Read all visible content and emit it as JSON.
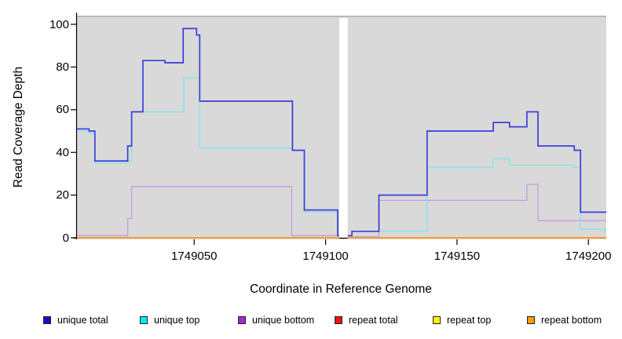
{
  "chart_data": {
    "type": "line",
    "step_plot": true,
    "title": "",
    "xlabel": "Coordinate in Reference Genome",
    "ylabel": "Read Coverage Depth",
    "xlim": [
      1749005.4,
      1749206.8
    ],
    "ylim": [
      0,
      100
    ],
    "x_ticks": [
      1749050,
      1749100,
      1749150,
      1749200
    ],
    "x_tick_labels": [
      "1749050",
      "1749100",
      "1749150",
      "1749200"
    ],
    "y_ticks": [
      0,
      20,
      40,
      60,
      80,
      100
    ],
    "y_tick_labels": [
      "0",
      "20",
      "40",
      "60",
      "80",
      "100"
    ],
    "grid": false,
    "panel_bg": "#d9d9d9",
    "gap_x": [
      1749105.2,
      1749108.4
    ],
    "legend_position": "bottom",
    "series": [
      {
        "name": "repeat total",
        "color": "#dd1111",
        "width": 1.4,
        "regions": [
          [
            [
              1749005.4,
              0
            ],
            [
              1749105.2,
              0
            ]
          ],
          [
            [
              1749108.4,
              0
            ],
            [
              1749206.8,
              0
            ]
          ]
        ]
      },
      {
        "name": "repeat top",
        "color": "#ffff00",
        "width": 1.4,
        "regions": [
          [
            [
              1749005.4,
              0
            ],
            [
              1749105.2,
              0
            ]
          ],
          [
            [
              1749108.4,
              0
            ],
            [
              1749206.8,
              0
            ]
          ]
        ]
      },
      {
        "name": "repeat bottom",
        "color": "#ff9d2e",
        "width": 1.8,
        "regions": [
          [
            [
              1749005.4,
              0
            ],
            [
              1749105.2,
              0
            ]
          ],
          [
            [
              1749108.4,
              0
            ],
            [
              1749206.8,
              0
            ]
          ]
        ]
      },
      {
        "name": "unique bottom",
        "color": "#c79bdf",
        "width": 1.3,
        "regions": [
          [
            [
              1749005.4,
              1
            ],
            [
              1749024.7,
              1
            ],
            [
              1749024.7,
              9
            ],
            [
              1749026.2,
              9
            ],
            [
              1749026.2,
              24
            ],
            [
              1749087.1,
              24
            ],
            [
              1749087.1,
              1
            ],
            [
              1749105.2,
              1
            ]
          ],
          [
            [
              1749108.4,
              0.5
            ],
            [
              1749120.3,
              0.5
            ],
            [
              1749120.3,
              17.5
            ],
            [
              1749176.6,
              17.5
            ],
            [
              1749176.6,
              25
            ],
            [
              1749180.8,
              25
            ],
            [
              1749180.8,
              8
            ],
            [
              1749206.8,
              8
            ]
          ]
        ]
      },
      {
        "name": "unique top",
        "color": "#7fe6e8",
        "width": 1.3,
        "regions": [
          [
            [
              1749005.4,
              50
            ],
            [
              1749010,
              50
            ],
            [
              1749010,
              49
            ],
            [
              1749012.2,
              49
            ],
            [
              1749012.2,
              35
            ],
            [
              1749024.7,
              35
            ],
            [
              1749024.7,
              36
            ],
            [
              1749026.2,
              36
            ],
            [
              1749026.2,
              59
            ],
            [
              1749046,
              59
            ],
            [
              1749046,
              75
            ],
            [
              1749052.1,
              75
            ],
            [
              1749052.1,
              42
            ],
            [
              1749087.1,
              42
            ],
            [
              1749087.1,
              41
            ],
            [
              1749091.9,
              41
            ],
            [
              1749091.9,
              12
            ],
            [
              1749104.6,
              12
            ],
            [
              1749104.6,
              1
            ],
            [
              1749105.2,
              1
            ]
          ],
          [
            [
              1749108.4,
              1
            ],
            [
              1749110,
              1
            ],
            [
              1749110,
              3
            ],
            [
              1749138.6,
              3
            ],
            [
              1749138.6,
              33
            ],
            [
              1749163.8,
              33
            ],
            [
              1749163.8,
              37
            ],
            [
              1749170,
              37
            ],
            [
              1749170,
              34
            ],
            [
              1749194.6,
              34
            ],
            [
              1749194.6,
              33
            ],
            [
              1749197,
              33
            ],
            [
              1749197,
              4
            ],
            [
              1749206.3,
              4
            ],
            [
              1749206.3,
              3
            ],
            [
              1749206.8,
              3
            ]
          ]
        ]
      },
      {
        "name": "unique total",
        "color": "#3d3dda",
        "width": 1.7,
        "regions": [
          [
            [
              1749005.4,
              51
            ],
            [
              1749010,
              51
            ],
            [
              1749010,
              50
            ],
            [
              1749012.2,
              50
            ],
            [
              1749012.2,
              36
            ],
            [
              1749024.7,
              36
            ],
            [
              1749024.7,
              43
            ],
            [
              1749026.2,
              43
            ],
            [
              1749026.2,
              59
            ],
            [
              1749030.5,
              59
            ],
            [
              1749030.5,
              83
            ],
            [
              1749038.9,
              83
            ],
            [
              1749038.9,
              82
            ],
            [
              1749045.8,
              82
            ],
            [
              1749045.8,
              98
            ],
            [
              1749050.9,
              98
            ],
            [
              1749050.9,
              95
            ],
            [
              1749052.1,
              95
            ],
            [
              1749052.1,
              64
            ],
            [
              1749087.4,
              64
            ],
            [
              1749087.4,
              41
            ],
            [
              1749091.9,
              41
            ],
            [
              1749091.9,
              13
            ],
            [
              1749104.6,
              13
            ],
            [
              1749104.6,
              1
            ],
            [
              1749105.2,
              1
            ]
          ],
          [
            [
              1749108.4,
              1
            ],
            [
              1749110,
              1
            ],
            [
              1749110,
              3
            ],
            [
              1749120.3,
              3
            ],
            [
              1749120.3,
              20
            ],
            [
              1749138.6,
              20
            ],
            [
              1749138.6,
              50
            ],
            [
              1749163.8,
              50
            ],
            [
              1749163.8,
              54
            ],
            [
              1749170,
              54
            ],
            [
              1749170,
              52
            ],
            [
              1749176.6,
              52
            ],
            [
              1749176.6,
              59
            ],
            [
              1749180.8,
              59
            ],
            [
              1749180.8,
              43
            ],
            [
              1749194.6,
              43
            ],
            [
              1749194.6,
              41
            ],
            [
              1749197,
              41
            ],
            [
              1749197,
              12
            ],
            [
              1749206.8,
              12
            ]
          ]
        ]
      }
    ],
    "legend": [
      {
        "label": "unique total",
        "fill": "#1111cc"
      },
      {
        "label": "unique top",
        "fill": "#00ebeb"
      },
      {
        "label": "unique bottom",
        "fill": "#a12acf"
      },
      {
        "label": "repeat total",
        "fill": "#ee1111"
      },
      {
        "label": "repeat top",
        "fill": "#fcfc00"
      },
      {
        "label": "repeat bottom",
        "fill": "#f49c00"
      }
    ]
  }
}
